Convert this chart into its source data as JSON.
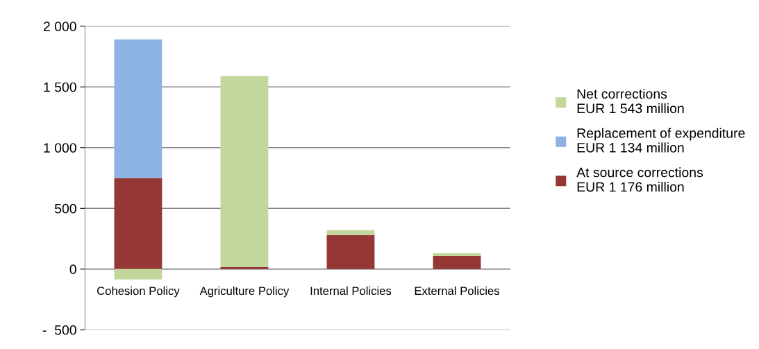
{
  "chart_data": {
    "type": "bar",
    "stacked": true,
    "categories": [
      "Cohesion Policy",
      "Agriculture Policy",
      "Internal Policies",
      "External Policies"
    ],
    "series": [
      {
        "name": "At source corrections\nEUR 1 176 million",
        "color": "#953735",
        "values": [
          749,
          17,
          280,
          109
        ]
      },
      {
        "name": "Replacement of expenditure\nEUR 1 134 million",
        "color": "#8db3e2",
        "values": [
          1143,
          null,
          null,
          null
        ]
      },
      {
        "name": "Net corrections\nEUR 1 543 million",
        "color": "#c3d69b",
        "values": [
          -86,
          1572,
          40,
          22
        ]
      }
    ],
    "ylim": [
      -500,
      2000
    ],
    "yticks": [
      {
        "value": -500,
        "label": "-  500"
      },
      0,
      {
        "value": 500,
        "label": "500"
      },
      {
        "value": 1000,
        "label": "1 000"
      },
      {
        "value": 1500,
        "label": "1 500"
      },
      {
        "value": 2000,
        "label": "2 000"
      }
    ],
    "grid": "y",
    "legend": "right"
  }
}
